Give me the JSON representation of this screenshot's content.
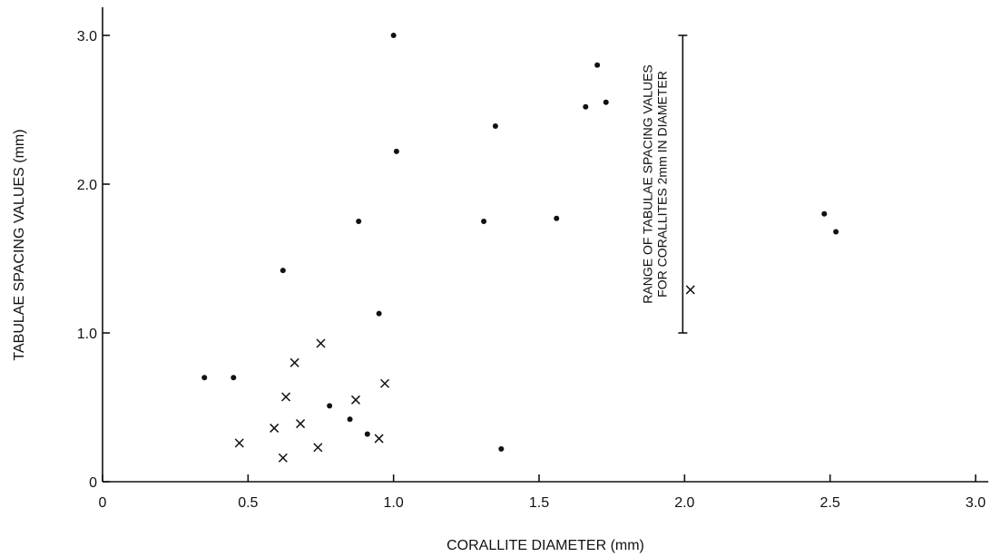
{
  "chart_data": {
    "type": "scatter",
    "title": "",
    "xlabel": "CORALLITE DIAMETER (mm)",
    "ylabel": "TABULAE SPACING VALUES (mm)",
    "xlim": [
      0,
      3.0
    ],
    "ylim": [
      0,
      3.0
    ],
    "x_ticks": [
      0,
      0.5,
      1.0,
      1.5,
      2.0,
      2.5,
      3.0
    ],
    "x_tick_labels": [
      "0",
      "0.5",
      "1.0",
      "1.5",
      "2.0",
      "2.5",
      "3.0"
    ],
    "y_ticks": [
      0,
      1.0,
      2.0,
      3.0
    ],
    "y_tick_labels": [
      "0",
      "1.0",
      "2.0",
      "3.0"
    ],
    "grid": false,
    "legend": "none",
    "series": [
      {
        "marker": "dot",
        "points": [
          [
            0.35,
            0.7
          ],
          [
            0.45,
            0.7
          ],
          [
            0.62,
            1.42
          ],
          [
            0.78,
            0.51
          ],
          [
            0.85,
            0.42
          ],
          [
            0.88,
            1.75
          ],
          [
            0.91,
            0.32
          ],
          [
            0.95,
            1.13
          ],
          [
            1.01,
            2.22
          ],
          [
            1.31,
            1.75
          ],
          [
            1.35,
            2.39
          ],
          [
            1.37,
            0.22
          ],
          [
            1.56,
            1.77
          ],
          [
            1.66,
            2.52
          ],
          [
            1.7,
            2.8
          ],
          [
            1.73,
            2.55
          ],
          [
            2.48,
            1.8
          ],
          [
            2.52,
            1.68
          ],
          [
            1.0,
            3.0
          ]
        ]
      },
      {
        "marker": "cross",
        "points": [
          [
            0.47,
            0.26
          ],
          [
            0.59,
            0.36
          ],
          [
            0.62,
            0.16
          ],
          [
            0.63,
            0.57
          ],
          [
            0.66,
            0.8
          ],
          [
            0.68,
            0.39
          ],
          [
            0.74,
            0.23
          ],
          [
            0.75,
            0.93
          ],
          [
            0.87,
            0.55
          ],
          [
            0.95,
            0.29
          ],
          [
            0.97,
            0.66
          ],
          [
            2.02,
            1.29
          ]
        ]
      }
    ],
    "annotation": {
      "lines": [
        "RANGE OF TABULAE SPACING VALUES",
        "FOR CORALLITES 2mm IN DIAMETER"
      ],
      "range_x": 2.0,
      "range_y": [
        1.0,
        3.0
      ]
    }
  }
}
